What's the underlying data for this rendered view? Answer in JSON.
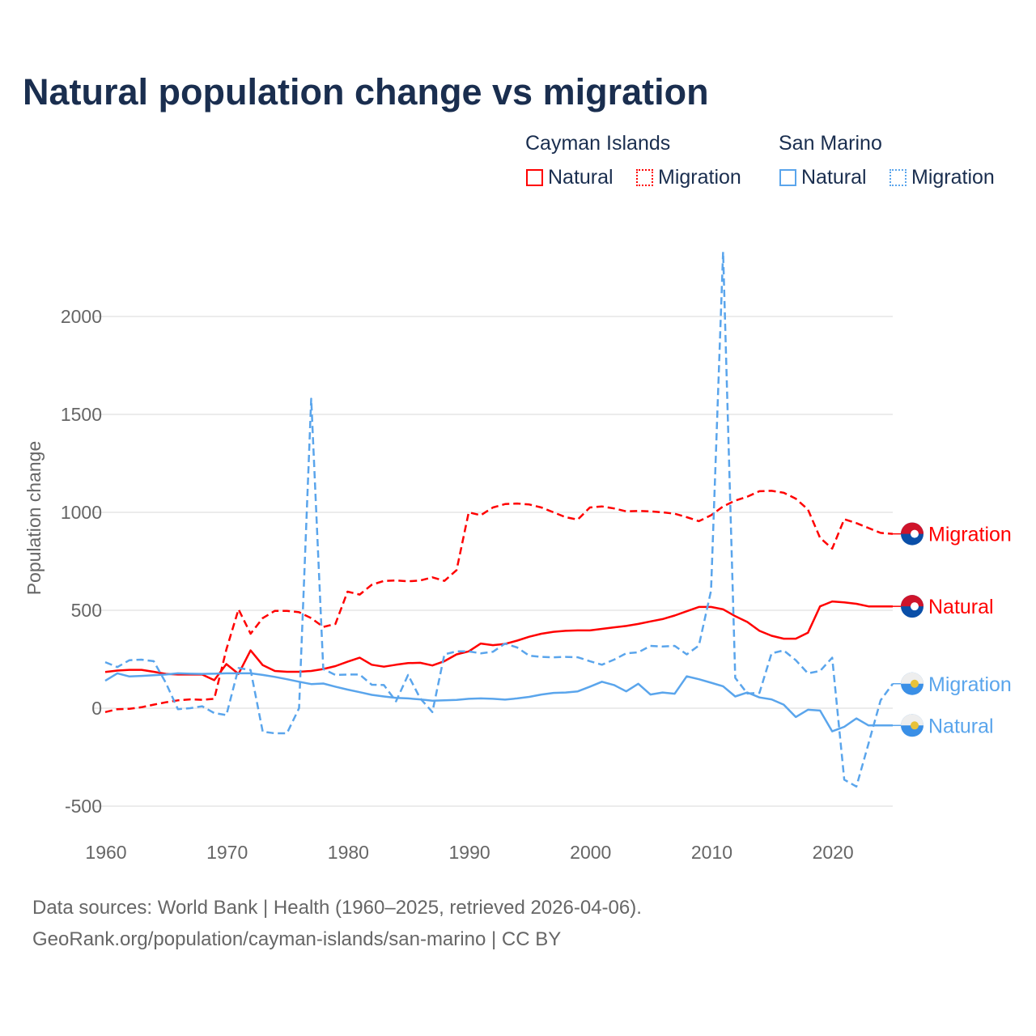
{
  "title": "Natural population change vs migration",
  "legend": {
    "groups": [
      {
        "name": "Cayman Islands",
        "items": [
          "Natural",
          "Migration"
        ],
        "color": "#ff0000"
      },
      {
        "name": "San Marino",
        "items": [
          "Natural",
          "Migration"
        ],
        "color": "#5aa5ec"
      }
    ]
  },
  "footer": {
    "line1": "Data sources: World Bank | Health (1960–2025, retrieved 2026-04-06).",
    "line2": "GeoRank.org/population/cayman-islands/san-marino | CC BY"
  },
  "chart_data": {
    "type": "line",
    "title": "Natural population change vs migration",
    "xlabel": "",
    "ylabel": "Population change",
    "xlim": [
      1960,
      2025
    ],
    "ylim": [
      -500,
      2300
    ],
    "x_ticks": [
      1960,
      1970,
      1980,
      1990,
      2000,
      2010,
      2020
    ],
    "y_ticks": [
      -500,
      0,
      500,
      1000,
      1500,
      2000
    ],
    "grid": true,
    "legend_position": "top-right",
    "x_start": 1960,
    "series": [
      {
        "name": "Cayman Islands Natural",
        "end_label": "Natural",
        "color": "#ff0000",
        "dash": false,
        "values": [
          185,
          192,
          196,
          196,
          186,
          175,
          172,
          172,
          172,
          143,
          225,
          175,
          295,
          220,
          190,
          186,
          186,
          190,
          200,
          215,
          237,
          258,
          222,
          212,
          222,
          230,
          232,
          218,
          240,
          275,
          290,
          330,
          322,
          328,
          345,
          365,
          380,
          390,
          395,
          397,
          397,
          405,
          413,
          420,
          430,
          443,
          455,
          473,
          495,
          517,
          517,
          505,
          470,
          440,
          395,
          370,
          355,
          355,
          385,
          520,
          545,
          540,
          533,
          520,
          520,
          520
        ]
      },
      {
        "name": "Cayman Islands Migration",
        "end_label": "Migration",
        "color": "#ff0000",
        "dash": true,
        "values": [
          -20,
          -5,
          -3,
          5,
          18,
          30,
          40,
          45,
          43,
          48,
          300,
          505,
          380,
          460,
          497,
          497,
          490,
          460,
          415,
          430,
          595,
          580,
          630,
          650,
          652,
          648,
          652,
          668,
          650,
          705,
          1000,
          985,
          1025,
          1042,
          1045,
          1040,
          1025,
          1000,
          975,
          963,
          1025,
          1030,
          1020,
          1005,
          1007,
          1005,
          1000,
          993,
          975,
          955,
          985,
          1030,
          1060,
          1080,
          1108,
          1110,
          1100,
          1070,
          1015,
          870,
          815,
          965,
          945,
          920,
          895,
          890
        ]
      },
      {
        "name": "San Marino Natural",
        "end_label": "Natural",
        "color": "#5aa5ec",
        "dash": false,
        "values": [
          140,
          178,
          162,
          165,
          168,
          172,
          178,
          176,
          175,
          176,
          178,
          178,
          178,
          170,
          160,
          148,
          135,
          123,
          126,
          110,
          95,
          82,
          68,
          60,
          53,
          50,
          45,
          38,
          40,
          42,
          48,
          50,
          48,
          44,
          50,
          58,
          70,
          78,
          80,
          86,
          110,
          135,
          118,
          86,
          125,
          70,
          80,
          74,
          163,
          148,
          130,
          112,
          60,
          80,
          55,
          45,
          18,
          -45,
          -8,
          -12,
          -118,
          -95,
          -52,
          -88,
          -88,
          -88
        ]
      },
      {
        "name": "San Marino Migration",
        "end_label": "Migration",
        "color": "#5aa5ec",
        "dash": true,
        "values": [
          235,
          210,
          245,
          248,
          240,
          130,
          -5,
          0,
          10,
          -25,
          -35,
          205,
          195,
          -120,
          -128,
          -128,
          0,
          1580,
          200,
          170,
          172,
          172,
          120,
          118,
          35,
          170,
          50,
          -20,
          275,
          290,
          290,
          280,
          288,
          330,
          310,
          268,
          262,
          260,
          262,
          260,
          240,
          222,
          248,
          280,
          285,
          318,
          315,
          318,
          275,
          320,
          600,
          2330,
          155,
          75,
          78,
          280,
          295,
          245,
          178,
          190,
          258,
          -365,
          -400,
          -180,
          40,
          125
        ]
      }
    ]
  }
}
